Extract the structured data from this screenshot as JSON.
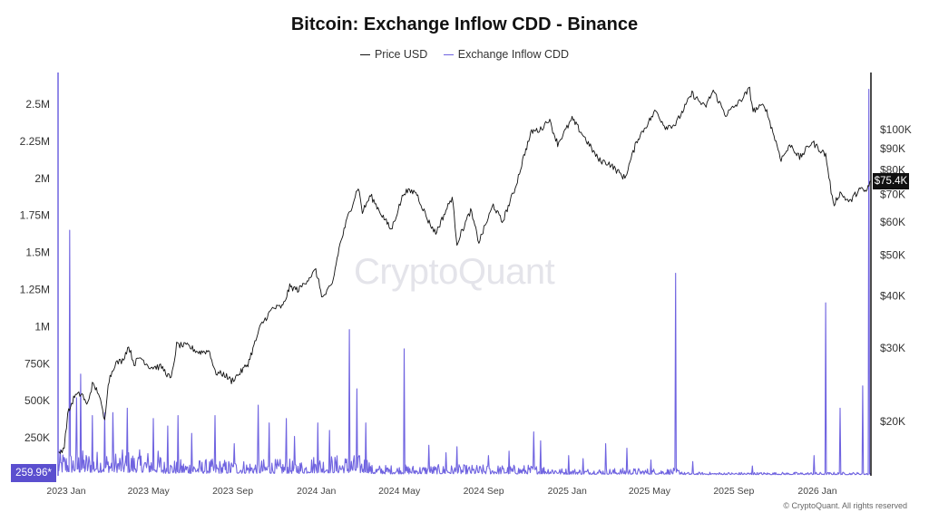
{
  "chart_data": {
    "type": "line",
    "title": "Bitcoin: Exchange Inflow CDD - Binance",
    "legend": {
      "placement": "top-center",
      "entries": [
        {
          "name": "Price USD",
          "color": "#111111"
        },
        {
          "name": "Exchange Inflow CDD",
          "color": "#6f63e0"
        }
      ]
    },
    "x_ticks": [
      "2023 Jan",
      "2023 May",
      "2023 Sep",
      "2024 Jan",
      "2024 May",
      "2024 Sep",
      "2025 Jan",
      "2025 May",
      "2025 Sep",
      "2026 Jan"
    ],
    "x_range": [
      "2023-01-01",
      "2026-04-01"
    ],
    "y_left": {
      "label": "",
      "range": [
        0,
        2500000
      ],
      "ticks": [
        {
          "value": 250000,
          "label": "250K"
        },
        {
          "value": 500000,
          "label": "500K"
        },
        {
          "value": 750000,
          "label": "750K"
        },
        {
          "value": 1000000,
          "label": "1M"
        },
        {
          "value": 1250000,
          "label": "1.25M"
        },
        {
          "value": 1500000,
          "label": "1.5M"
        },
        {
          "value": 1750000,
          "label": "1.75M"
        },
        {
          "value": 2000000,
          "label": "2M"
        },
        {
          "value": 2250000,
          "label": "2.25M"
        },
        {
          "value": 2500000,
          "label": "2.5M"
        }
      ]
    },
    "y_right": {
      "label": "",
      "scale": "log",
      "ticks": [
        {
          "value": 20000,
          "label": "$20K"
        },
        {
          "value": 30000,
          "label": "$30K"
        },
        {
          "value": 40000,
          "label": "$40K"
        },
        {
          "value": 50000,
          "label": "$50K"
        },
        {
          "value": 60000,
          "label": "$60K"
        },
        {
          "value": 70000,
          "label": "$70K"
        },
        {
          "value": 80000,
          "label": "$80K"
        },
        {
          "value": 90000,
          "label": "$90K"
        },
        {
          "value": 100000,
          "label": "$100K"
        }
      ]
    },
    "grid": false,
    "series": [
      {
        "name": "Price USD",
        "axis": "right",
        "color": "#111111",
        "points": [
          [
            "2023-01-01",
            16600
          ],
          [
            "2023-01-10",
            17400
          ],
          [
            "2023-01-15",
            20800
          ],
          [
            "2023-01-25",
            23000
          ],
          [
            "2023-02-05",
            23300
          ],
          [
            "2023-02-12",
            21800
          ],
          [
            "2023-02-20",
            24500
          ],
          [
            "2023-03-01",
            23500
          ],
          [
            "2023-03-10",
            20000
          ],
          [
            "2023-03-15",
            24800
          ],
          [
            "2023-03-25",
            27500
          ],
          [
            "2023-04-05",
            28000
          ],
          [
            "2023-04-14",
            30300
          ],
          [
            "2023-04-22",
            27500
          ],
          [
            "2023-05-01",
            28500
          ],
          [
            "2023-05-15",
            27000
          ],
          [
            "2023-06-01",
            27000
          ],
          [
            "2023-06-15",
            25200
          ],
          [
            "2023-06-23",
            30500
          ],
          [
            "2023-07-10",
            30300
          ],
          [
            "2023-07-25",
            29300
          ],
          [
            "2023-08-10",
            29500
          ],
          [
            "2023-08-18",
            26200
          ],
          [
            "2023-09-01",
            25900
          ],
          [
            "2023-09-11",
            25000
          ],
          [
            "2023-09-25",
            26300
          ],
          [
            "2023-10-05",
            27500
          ],
          [
            "2023-10-24",
            34000
          ],
          [
            "2023-11-10",
            37300
          ],
          [
            "2023-11-25",
            37700
          ],
          [
            "2023-12-05",
            42000
          ],
          [
            "2023-12-18",
            41300
          ],
          [
            "2024-01-01",
            44000
          ],
          [
            "2024-01-12",
            46000
          ],
          [
            "2024-01-22",
            39500
          ],
          [
            "2024-02-05",
            42500
          ],
          [
            "2024-02-15",
            52000
          ],
          [
            "2024-02-28",
            62000
          ],
          [
            "2024-03-05",
            66000
          ],
          [
            "2024-03-14",
            73000
          ],
          [
            "2024-03-20",
            63500
          ],
          [
            "2024-04-01",
            69500
          ],
          [
            "2024-04-15",
            63500
          ],
          [
            "2024-05-01",
            57500
          ],
          [
            "2024-05-20",
            71000
          ],
          [
            "2024-06-06",
            71000
          ],
          [
            "2024-06-24",
            60500
          ],
          [
            "2024-07-05",
            56500
          ],
          [
            "2024-07-29",
            69000
          ],
          [
            "2024-08-05",
            53500
          ],
          [
            "2024-08-25",
            64000
          ],
          [
            "2024-09-06",
            53800
          ],
          [
            "2024-09-27",
            66000
          ],
          [
            "2024-10-10",
            60000
          ],
          [
            "2024-10-29",
            72500
          ],
          [
            "2024-11-12",
            88000
          ],
          [
            "2024-11-22",
            99000
          ],
          [
            "2024-12-05",
            100000
          ],
          [
            "2024-12-17",
            106000
          ],
          [
            "2024-12-30",
            92500
          ],
          [
            "2025-01-20",
            106000
          ],
          [
            "2025-02-05",
            97000
          ],
          [
            "2025-02-28",
            84500
          ],
          [
            "2025-03-15",
            83000
          ],
          [
            "2025-04-07",
            76500
          ],
          [
            "2025-04-25",
            94500
          ],
          [
            "2025-05-22",
            111000
          ],
          [
            "2025-06-05",
            101500
          ],
          [
            "2025-06-20",
            103000
          ],
          [
            "2025-07-14",
            122000
          ],
          [
            "2025-08-02",
            113000
          ],
          [
            "2025-08-14",
            124000
          ],
          [
            "2025-09-01",
            108500
          ],
          [
            "2025-09-20",
            116000
          ],
          [
            "2025-10-06",
            125000
          ],
          [
            "2025-10-11",
            111000
          ],
          [
            "2025-10-28",
            114500
          ],
          [
            "2025-11-21",
            85000
          ],
          [
            "2025-12-05",
            92000
          ],
          [
            "2025-12-18",
            85500
          ],
          [
            "2026-01-05",
            93500
          ],
          [
            "2026-01-12",
            91000
          ],
          [
            "2026-01-25",
            87000
          ],
          [
            "2026-02-05",
            66000
          ],
          [
            "2026-02-15",
            70500
          ],
          [
            "2026-03-01",
            67000
          ],
          [
            "2026-03-15",
            72000
          ],
          [
            "2026-03-25",
            71000
          ],
          [
            "2026-04-01",
            75400
          ]
        ]
      },
      {
        "name": "Exchange Inflow CDD",
        "axis": "left",
        "color": "#6f63e0",
        "baseline_noise": [
          {
            "from": "2023-01-01",
            "to": "2023-06-01",
            "level": 110000
          },
          {
            "from": "2023-06-01",
            "to": "2024-01-01",
            "level": 70000
          },
          {
            "from": "2024-01-01",
            "to": "2024-04-01",
            "level": 90000
          },
          {
            "from": "2024-04-01",
            "to": "2025-01-01",
            "level": 45000
          },
          {
            "from": "2025-01-01",
            "to": "2025-07-01",
            "level": 30000
          },
          {
            "from": "2025-07-01",
            "to": "2026-04-01",
            "level": 12000
          }
        ],
        "spikes": [
          [
            "2023-01-18",
            1650000
          ],
          [
            "2023-02-03",
            680000
          ],
          [
            "2023-01-28",
            520000
          ],
          [
            "2023-02-20",
            400000
          ],
          [
            "2023-03-10",
            420000
          ],
          [
            "2023-03-22",
            420000
          ],
          [
            "2023-04-12",
            450000
          ],
          [
            "2023-05-20",
            380000
          ],
          [
            "2023-06-10",
            330000
          ],
          [
            "2023-06-25",
            400000
          ],
          [
            "2023-07-15",
            280000
          ],
          [
            "2023-08-18",
            400000
          ],
          [
            "2023-09-15",
            210000
          ],
          [
            "2023-10-20",
            470000
          ],
          [
            "2023-11-05",
            350000
          ],
          [
            "2023-11-30",
            380000
          ],
          [
            "2023-12-12",
            260000
          ],
          [
            "2024-01-15",
            350000
          ],
          [
            "2024-02-01",
            300000
          ],
          [
            "2024-03-01",
            980000
          ],
          [
            "2024-03-12",
            580000
          ],
          [
            "2024-03-25",
            350000
          ],
          [
            "2024-05-20",
            850000
          ],
          [
            "2024-06-25",
            200000
          ],
          [
            "2024-07-20",
            150000
          ],
          [
            "2024-08-05",
            190000
          ],
          [
            "2024-09-20",
            130000
          ],
          [
            "2024-10-20",
            160000
          ],
          [
            "2024-11-25",
            290000
          ],
          [
            "2024-12-05",
            230000
          ],
          [
            "2025-01-15",
            130000
          ],
          [
            "2025-02-05",
            110000
          ],
          [
            "2025-03-10",
            210000
          ],
          [
            "2025-04-10",
            180000
          ],
          [
            "2025-05-15",
            100000
          ],
          [
            "2025-06-20",
            1360000
          ],
          [
            "2025-07-15",
            90000
          ],
          [
            "2025-10-10",
            60000
          ],
          [
            "2026-01-08",
            130000
          ],
          [
            "2026-01-25",
            1160000
          ],
          [
            "2026-02-15",
            450000
          ],
          [
            "2026-03-20",
            600000
          ],
          [
            "2026-03-29",
            2600000
          ]
        ]
      }
    ],
    "last_values": {
      "price": "$75.4K",
      "cdd": "259.96*"
    }
  },
  "watermark": "CryptoQuant",
  "copyright": "© CryptoQuant. All rights reserved"
}
